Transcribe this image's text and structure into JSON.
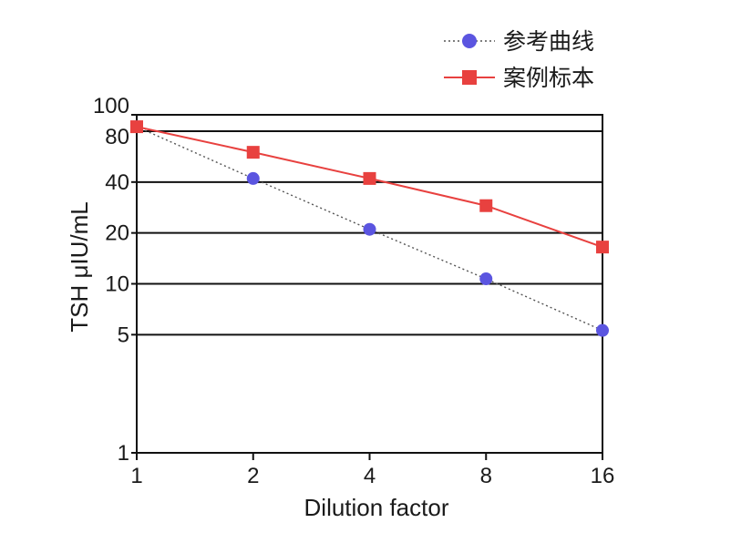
{
  "chart_data": {
    "type": "line",
    "x_scale": "log2",
    "y_scale": "log10",
    "x": [
      1,
      2,
      4,
      8,
      16
    ],
    "x_ticks": [
      "1",
      "2",
      "4",
      "8",
      "16"
    ],
    "y_ticks": [
      {
        "value": 1,
        "label": "1"
      },
      {
        "value": 5,
        "label": "5"
      },
      {
        "value": 10,
        "label": "10"
      },
      {
        "value": 20,
        "label": "20"
      },
      {
        "value": 40,
        "label": "40"
      },
      {
        "value": 80,
        "label": "80"
      },
      {
        "value": 100,
        "label": "100"
      }
    ],
    "grid_lines_y": [
      5,
      10,
      20,
      40,
      80,
      100
    ],
    "xlim": [
      1,
      16
    ],
    "ylim": [
      1,
      100
    ],
    "xlabel": "Dilution factor",
    "ylabel": "TSH μIU/mL",
    "legend_position": "top-right",
    "series": [
      {
        "name": "参考曲线",
        "values": [
          85,
          42,
          21,
          10.7,
          5.3
        ],
        "color": "#5b55e0",
        "marker": "circle",
        "line": "dotted"
      },
      {
        "name": "案例标本",
        "values": [
          85,
          60,
          42,
          29,
          16.5
        ],
        "color": "#e8413f",
        "marker": "square",
        "line": "solid"
      }
    ]
  }
}
